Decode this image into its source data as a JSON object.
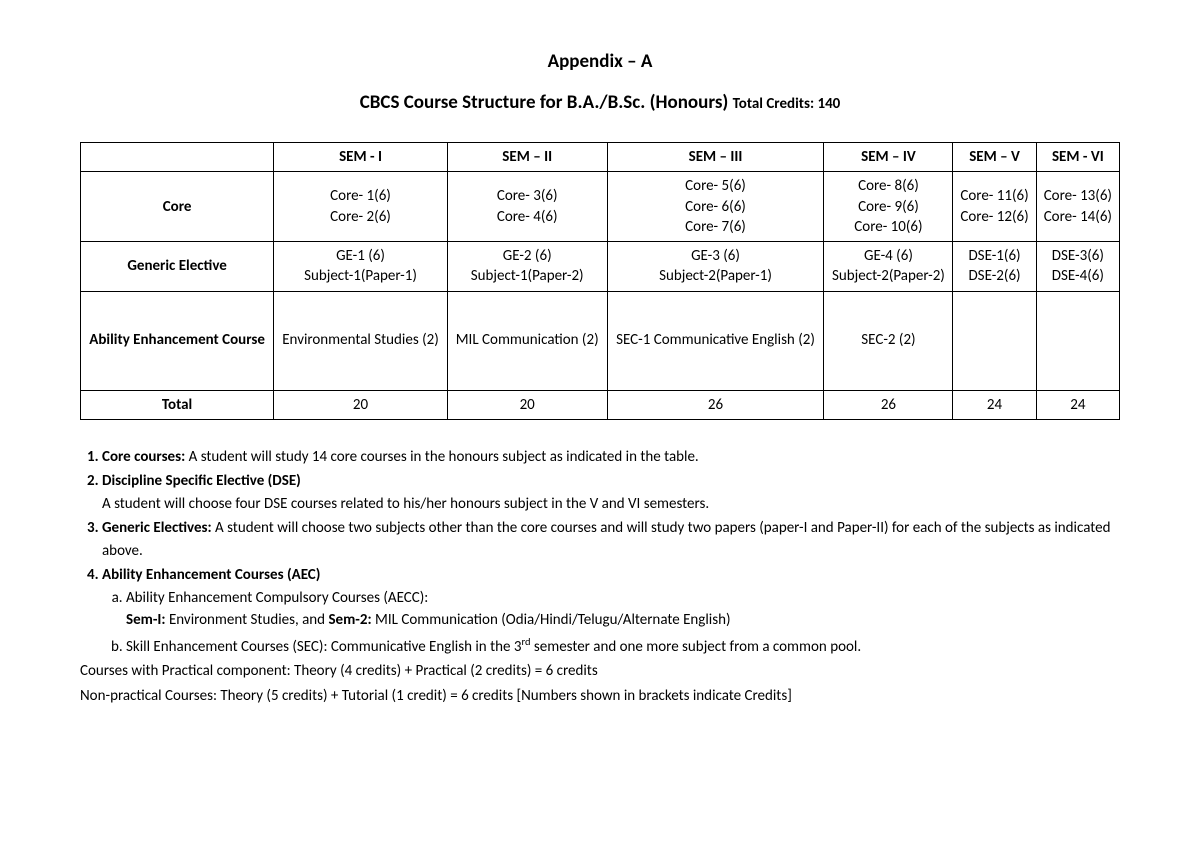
{
  "title1": "Appendix – A",
  "title2_main": "CBCS Course Structure for B.A./B.Sc. (Honours) ",
  "title2_credits": "Total Credits: 140",
  "table": {
    "headers": [
      "",
      "SEM - I",
      "SEM – II",
      "SEM – III",
      "SEM – IV",
      "SEM – V",
      "SEM - VI"
    ],
    "rows": [
      {
        "label": "Core",
        "cells": [
          "Core- 1(6)\nCore- 2(6)",
          "Core- 3(6)\nCore- 4(6)",
          "Core- 5(6)\nCore- 6(6)\nCore- 7(6)",
          "Core- 8(6)\nCore- 9(6)\nCore- 10(6)",
          "Core- 11(6)\nCore- 12(6)",
          "Core- 13(6)\nCore- 14(6)"
        ]
      },
      {
        "label": "Generic Elective",
        "cells": [
          "GE-1 (6)\nSubject-1(Paper-1)",
          "GE-2 (6)\nSubject-1(Paper-2)",
          "GE-3 (6)\nSubject-2(Paper-1)",
          "GE-4 (6)\nSubject-2(Paper-2)",
          "DSE-1(6)\nDSE-2(6)",
          "DSE-3(6)\nDSE-4(6)"
        ]
      },
      {
        "label": "Ability Enhancement Course",
        "tall": true,
        "cells": [
          "Environmental Studies (2)",
          "MIL Communication (2)",
          "SEC-1 Communicative English (2)",
          "SEC-2 (2)",
          "",
          ""
        ]
      },
      {
        "label": "Total",
        "cells": [
          "20",
          "20",
          "26",
          "26",
          "24",
          "24"
        ]
      }
    ]
  },
  "notes": {
    "n1_bold": "Core courses: ",
    "n1_rest": "A student will study 14 core courses in the honours subject as indicated in the table.",
    "n2_bold": "Discipline Specific Elective (DSE)",
    "n2_line": "A student will choose four DSE courses related to his/her honours subject in the V and VI semesters.",
    "n3_bold": "Generic Electives: ",
    "n3_rest": "A student will choose two subjects other than the core courses and will study two papers (paper-I and Paper-II) for each of the subjects as indicated above.",
    "n4_bold": "Ability Enhancement Courses (AEC)",
    "n4a": "Ability Enhancement Compulsory Courses (AECC):",
    "n4a_line_pre": "",
    "n4a_sem1b": "Sem-I: ",
    "n4a_sem1r": "Environment Studies, and ",
    "n4a_sem2b": "Sem-2: ",
    "n4a_sem2r": "MIL Communication (Odia/Hindi/Telugu/Alternate English)",
    "n4b_pre": "Skill Enhancement Courses (SEC): Communicative English in the 3",
    "n4b_sup": "rd",
    "n4b_post": " semester and one more subject from a common pool.",
    "footer1": "Courses with Practical component: Theory (4 credits) + Practical (2 credits) = 6 credits",
    "footer2": "Non-practical Courses: Theory (5 credits) + Tutorial (1 credit) = 6 credits [Numbers shown in brackets indicate Credits]"
  }
}
